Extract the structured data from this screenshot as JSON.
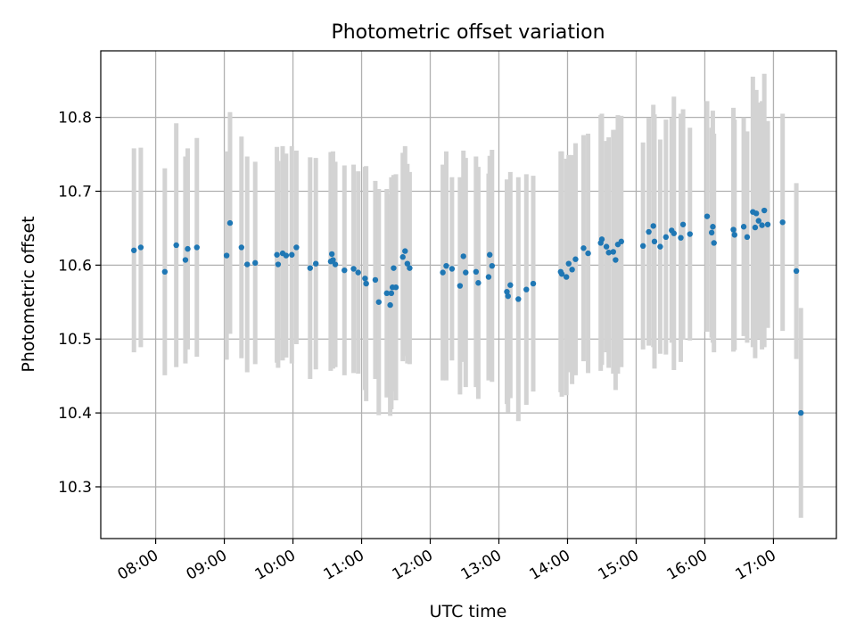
{
  "chart_data": {
    "type": "scatter",
    "title": "Photometric offset variation",
    "xlabel": "UTC time",
    "ylabel": "Photometric offset",
    "xlim": [
      "07:12",
      "17:55"
    ],
    "ylim": [
      10.23,
      10.89
    ],
    "grid": true,
    "x_tick_labels": [
      "08:00",
      "09:00",
      "10:00",
      "11:00",
      "12:00",
      "13:00",
      "14:00",
      "15:00",
      "16:00",
      "17:00"
    ],
    "y_tick_labels": [
      "10.3",
      "10.4",
      "10.5",
      "10.6",
      "10.7",
      "10.8"
    ],
    "y_ticks": [
      10.3,
      10.4,
      10.5,
      10.6,
      10.7,
      10.8
    ],
    "colors": {
      "point": "#1f77b4",
      "errorbar": "#d3d3d3",
      "grid": "#b0b0b0"
    },
    "series": [
      {
        "x": [
          "07:41",
          "07:47",
          "08:08",
          "08:18",
          "08:26",
          "08:28",
          "08:36",
          "09:02",
          "09:05",
          "09:15",
          "09:20",
          "09:27",
          "09:46",
          "09:47",
          "09:51",
          "09:54",
          "09:59",
          "10:03",
          "10:15",
          "10:20",
          "10:33",
          "10:34",
          "10:35",
          "10:37",
          "10:45",
          "10:53",
          "10:57",
          "11:03",
          "11:04",
          "11:12",
          "11:15",
          "11:22",
          "11:25",
          "11:26",
          "11:27",
          "11:28",
          "11:30",
          "11:36",
          "11:38",
          "11:40",
          "11:42",
          "12:11",
          "12:14",
          "12:19",
          "12:26",
          "12:29",
          "12:31",
          "12:40",
          "12:42",
          "12:51",
          "12:52",
          "12:54",
          "13:07",
          "13:08",
          "13:10",
          "13:17",
          "13:24",
          "13:30",
          "13:54",
          "13:55",
          "13:59",
          "14:01",
          "14:04",
          "14:07",
          "14:14",
          "14:18",
          "14:29",
          "14:30",
          "14:34",
          "14:36",
          "14:40",
          "14:42",
          "14:44",
          "14:47",
          "15:06",
          "15:11",
          "15:15",
          "15:16",
          "15:21",
          "15:26",
          "15:31",
          "15:33",
          "15:39",
          "15:41",
          "15:47",
          "16:02",
          "16:06",
          "16:07",
          "16:08",
          "16:25",
          "16:26",
          "16:34",
          "16:37",
          "16:42",
          "16:44",
          "16:45",
          "16:47",
          "16:50",
          "16:52",
          "16:55",
          "17:08",
          "17:20",
          "17:24"
        ],
        "values": [
          10.62,
          10.624,
          10.591,
          10.627,
          10.607,
          10.622,
          10.624,
          10.613,
          10.657,
          10.624,
          10.601,
          10.603,
          10.614,
          10.601,
          10.616,
          10.613,
          10.614,
          10.624,
          10.596,
          10.602,
          10.605,
          10.615,
          10.607,
          10.601,
          10.593,
          10.595,
          10.59,
          10.582,
          10.575,
          10.58,
          10.55,
          10.562,
          10.546,
          10.562,
          10.57,
          10.596,
          10.57,
          10.611,
          10.619,
          10.602,
          10.596,
          10.59,
          10.599,
          10.595,
          10.572,
          10.612,
          10.59,
          10.591,
          10.576,
          10.584,
          10.614,
          10.599,
          10.564,
          10.558,
          10.573,
          10.554,
          10.567,
          10.575,
          10.591,
          10.588,
          10.584,
          10.602,
          10.594,
          10.608,
          10.623,
          10.616,
          10.63,
          10.635,
          10.625,
          10.617,
          10.618,
          10.607,
          10.628,
          10.632,
          10.626,
          10.645,
          10.653,
          10.632,
          10.625,
          10.638,
          10.647,
          10.643,
          10.637,
          10.655,
          10.642,
          10.666,
          10.644,
          10.652,
          10.63,
          10.648,
          10.641,
          10.652,
          10.638,
          10.672,
          10.651,
          10.67,
          10.66,
          10.654,
          10.674,
          10.655,
          10.658,
          10.592,
          10.4
        ],
        "errors": [
          0.138,
          0.135,
          0.14,
          0.165,
          0.14,
          0.136,
          0.148,
          0.141,
          0.15,
          0.15,
          0.146,
          0.137,
          0.146,
          0.14,
          0.145,
          0.138,
          0.147,
          0.131,
          0.15,
          0.143,
          0.148,
          0.138,
          0.147,
          0.139,
          0.142,
          0.141,
          0.137,
          0.151,
          0.159,
          0.134,
          0.153,
          0.141,
          0.15,
          0.157,
          0.141,
          0.126,
          0.153,
          0.141,
          0.142,
          0.135,
          0.13,
          0.146,
          0.155,
          0.124,
          0.147,
          0.143,
          0.155,
          0.156,
          0.157,
          0.14,
          0.134,
          0.157,
          0.152,
          0.157,
          0.153,
          0.165,
          0.156,
          0.146,
          0.163,
          0.166,
          0.16,
          0.147,
          0.155,
          0.157,
          0.153,
          0.162,
          0.173,
          0.17,
          0.143,
          0.156,
          0.165,
          0.176,
          0.175,
          0.17,
          0.14,
          0.154,
          0.164,
          0.172,
          0.145,
          0.159,
          0.152,
          0.185,
          0.168,
          0.156,
          0.144,
          0.156,
          0.142,
          0.157,
          0.148,
          0.165,
          0.156,
          0.148,
          0.143,
          0.183,
          0.177,
          0.167,
          0.16,
          0.168,
          0.185,
          0.14,
          0.147,
          0.119,
          0.142
        ]
      }
    ]
  }
}
